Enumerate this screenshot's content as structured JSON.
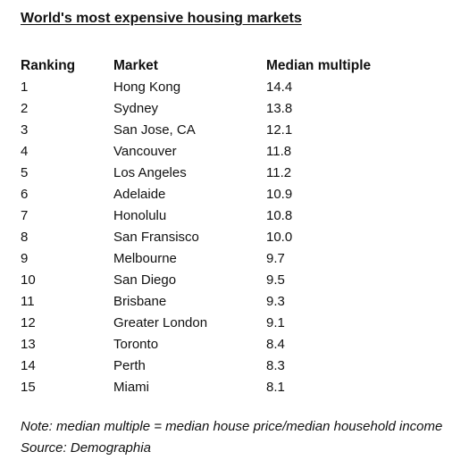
{
  "title": "World's most expensive housing markets",
  "table": {
    "headers": {
      "rank": "Ranking",
      "market": "Market",
      "multiple": "Median multiple"
    },
    "rows": [
      {
        "rank": "1",
        "market": "Hong Kong",
        "multiple": "14.4"
      },
      {
        "rank": "2",
        "market": "Sydney",
        "multiple": "13.8"
      },
      {
        "rank": "3",
        "market": "San Jose, CA",
        "multiple": "12.1"
      },
      {
        "rank": "4",
        "market": "Vancouver",
        "multiple": "11.8"
      },
      {
        "rank": "5",
        "market": "Los Angeles",
        "multiple": "11.2"
      },
      {
        "rank": "6",
        "market": "Adelaide",
        "multiple": "10.9"
      },
      {
        "rank": "7",
        "market": "Honolulu",
        "multiple": "10.8"
      },
      {
        "rank": "8",
        "market": "San Fransisco",
        "multiple": "10.0"
      },
      {
        "rank": "9",
        "market": "Melbourne",
        "multiple": "9.7"
      },
      {
        "rank": "10",
        "market": "San Diego",
        "multiple": "9.5"
      },
      {
        "rank": "11",
        "market": "Brisbane",
        "multiple": "9.3"
      },
      {
        "rank": "12",
        "market": "Greater London",
        "multiple": "9.1"
      },
      {
        "rank": "13",
        "market": "Toronto",
        "multiple": "8.4"
      },
      {
        "rank": "14",
        "market": "Perth",
        "multiple": "8.3"
      },
      {
        "rank": "15",
        "market": "Miami",
        "multiple": "8.1"
      }
    ]
  },
  "notes": {
    "note": "Note: median multiple = median house price/median household income",
    "source": "Source: Demographia"
  }
}
